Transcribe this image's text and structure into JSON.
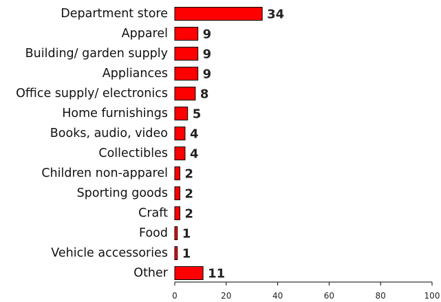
{
  "chart_data": {
    "type": "bar",
    "orientation": "horizontal",
    "categories": [
      "Department store",
      "Apparel",
      "Building/ garden supply",
      "Appliances",
      "Office supply/ electronics",
      "Home furnishings",
      "Books, audio, video",
      "Collectibles",
      "Children non-apparel",
      "Sporting goods",
      "Craft",
      "Food",
      "Vehicle accessories",
      "Other"
    ],
    "values": [
      34,
      9,
      9,
      9,
      8,
      5,
      4,
      4,
      2,
      2,
      2,
      1,
      1,
      11
    ],
    "value_labels": [
      "34",
      "9",
      "9",
      "9",
      "8",
      "5",
      "4",
      "4",
      "2",
      "2",
      "2",
      "1",
      "1",
      "11"
    ],
    "xlim": [
      0,
      100
    ],
    "xticks": [
      0,
      20,
      40,
      60,
      80,
      100
    ],
    "xtick_labels": [
      "0",
      "20",
      "40",
      "60",
      "80",
      "100"
    ],
    "title": "",
    "xlabel": "",
    "ylabel": "",
    "grid": false,
    "legend": "none",
    "bar_color": "#ff0000",
    "bar_edge_color": "#000000"
  }
}
